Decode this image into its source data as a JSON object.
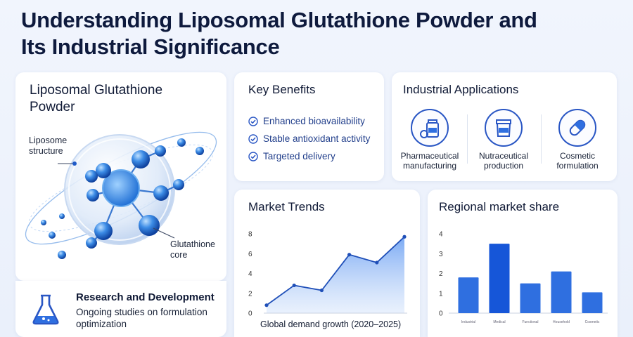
{
  "title": "Understanding Liposomal Glutathione Powder and Its Industrial Significance",
  "left_card": {
    "title": "Liposomal Glutathione Powder",
    "liposome_label": "Liposome structure",
    "core_label": "Glutathione core"
  },
  "research": {
    "title": "Research and Development",
    "text": "Ongoing studies on formulation optimization",
    "icon": "flask-icon"
  },
  "benefits": {
    "title": "Key Benefits",
    "items": [
      "Enhanced bioavailability",
      "Stable antioxidant activity",
      "Targeted delivery"
    ]
  },
  "industry": {
    "title": "Industrial Applications",
    "items": [
      {
        "label": "Pharmaceutical manufacturing",
        "icon": "pill-bottle-icon"
      },
      {
        "label": "Nutraceutical production",
        "icon": "supplement-jar-icon"
      },
      {
        "label": "Cosmetic formulation",
        "icon": "capsule-icon"
      }
    ]
  },
  "colors": {
    "accent": "#2956c4",
    "bar": "#2f6fe0",
    "bar_dark": "#1656d8"
  },
  "chart_data": [
    {
      "type": "area",
      "title": "Market Trends",
      "xlabel": "Global demand growth (2020–2025)",
      "ylabel": "",
      "ylim": [
        0,
        8
      ],
      "yticks": [
        "0",
        "2",
        "4",
        "6",
        "8"
      ],
      "x": [
        0,
        1,
        2,
        3,
        4,
        5
      ],
      "values": [
        0.8,
        2.8,
        2.3,
        5.9,
        5.1,
        7.7
      ],
      "grid": false
    },
    {
      "type": "bar",
      "title": "Regional market share",
      "ylim": [
        0,
        4
      ],
      "yticks": [
        "0",
        "1",
        "2",
        "3",
        "4"
      ],
      "categories": [
        "Industrial",
        "Medical",
        "Functional",
        "Household",
        "Cosmetic"
      ],
      "values": [
        1.8,
        3.5,
        1.5,
        2.1,
        1.05
      ],
      "grid": false
    }
  ]
}
